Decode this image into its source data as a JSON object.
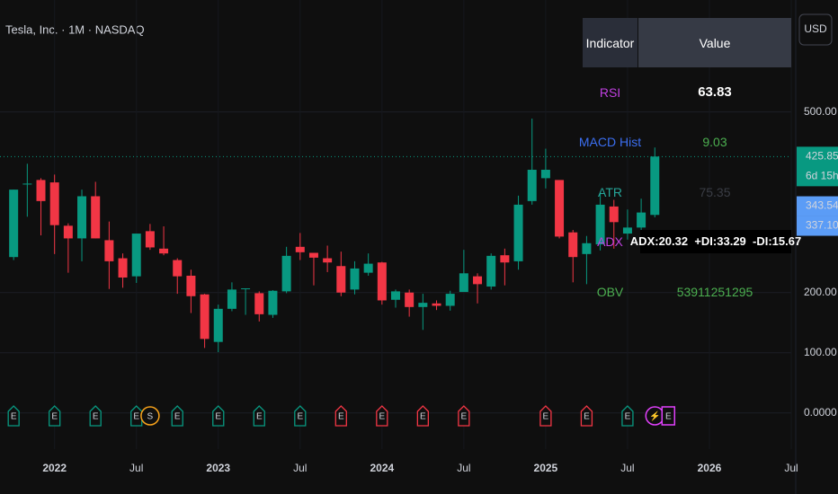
{
  "chart_data": {
    "type": "candlestick",
    "title": "Tesla, Inc. · 1M · NASDAQ",
    "currency": "USD",
    "up_color": "#089981",
    "down_color": "#f23645",
    "x": [
      "2021-10",
      "2021-11",
      "2021-12",
      "2022-01",
      "2022-02",
      "2022-03",
      "2022-04",
      "2022-05",
      "2022-06",
      "2022-07",
      "2022-08",
      "2022-09",
      "2022-10",
      "2022-11",
      "2022-12",
      "2023-01",
      "2023-02",
      "2023-03",
      "2023-04",
      "2023-05",
      "2023-06",
      "2023-07",
      "2023-08",
      "2023-09",
      "2023-10",
      "2023-11",
      "2023-12",
      "2024-01",
      "2024-02",
      "2024-03",
      "2024-04",
      "2024-05",
      "2024-06",
      "2024-07",
      "2024-08",
      "2024-09",
      "2024-10",
      "2024-11",
      "2024-12",
      "2025-01",
      "2025-02",
      "2025-03",
      "2025-04",
      "2025-05",
      "2025-06",
      "2025-07",
      "2025-08",
      "2025-09"
    ],
    "open": [
      259,
      381,
      387,
      383,
      311,
      290,
      360,
      287,
      257,
      227,
      302,
      273,
      254,
      228,
      197,
      118,
      173,
      206,
      199,
      163,
      202,
      276,
      266,
      257,
      244,
      205,
      233,
      250,
      188,
      200,
      176,
      182,
      178,
      201,
      227,
      210,
      262,
      252,
      352,
      390,
      387,
      300,
      264,
      280,
      343,
      298,
      308,
      329
    ],
    "high": [
      371,
      414,
      390,
      396,
      315,
      371,
      384,
      318,
      265,
      298,
      314,
      310,
      257,
      238,
      198,
      180,
      217,
      207,
      202,
      204,
      276,
      299,
      266,
      278,
      268,
      252,
      265,
      251,
      205,
      205,
      198,
      187,
      203,
      271,
      232,
      265,
      273,
      361,
      489,
      439,
      384,
      304,
      294,
      367,
      354,
      338,
      356,
      441
    ],
    "low": [
      254,
      326,
      295,
      264,
      233,
      252,
      290,
      206,
      208,
      216,
      271,
      262,
      198,
      166,
      108,
      101,
      169,
      163,
      152,
      158,
      199,
      254,
      212,
      234,
      194,
      197,
      228,
      180,
      175,
      160,
      138,
      171,
      170,
      201,
      182,
      205,
      212,
      238,
      346,
      373,
      290,
      217,
      214,
      270,
      273,
      288,
      297,
      325
    ],
    "close": [
      371,
      381,
      352,
      312,
      290,
      360,
      290,
      252,
      225,
      298,
      275,
      265,
      227,
      194,
      123,
      173,
      205,
      207,
      164,
      203,
      261,
      267,
      258,
      250,
      200,
      240,
      248,
      187,
      202,
      176,
      183,
      178,
      198,
      232,
      214,
      261,
      250,
      346,
      404,
      404,
      293,
      259,
      282,
      346,
      317,
      308,
      333,
      426
    ],
    "events": [
      [
        {
          "label": "E",
          "color": "#089981",
          "shape": "flag"
        }
      ],
      null,
      null,
      [
        {
          "label": "E",
          "color": "#089981",
          "shape": "flag"
        }
      ],
      null,
      null,
      [
        {
          "label": "E",
          "color": "#089981",
          "shape": "flag"
        }
      ],
      null,
      null,
      [
        {
          "label": "E",
          "color": "#089981",
          "shape": "flag"
        }
      ],
      [
        {
          "label": "S",
          "color": "#f7a21b",
          "shape": "circle"
        }
      ],
      null,
      [
        {
          "label": "E",
          "color": "#089981",
          "shape": "flag"
        }
      ],
      null,
      null,
      [
        {
          "label": "E",
          "color": "#089981",
          "shape": "flag"
        }
      ],
      null,
      null,
      [
        {
          "label": "E",
          "color": "#089981",
          "shape": "flag"
        }
      ],
      null,
      null,
      [
        {
          "label": "E",
          "color": "#089981",
          "shape": "flag"
        }
      ],
      null,
      null,
      [
        {
          "label": "E",
          "color": "#f23645",
          "shape": "flag"
        }
      ],
      null,
      null,
      [
        {
          "label": "E",
          "color": "#f23645",
          "shape": "flag"
        }
      ],
      null,
      null,
      [
        {
          "label": "E",
          "color": "#f23645",
          "shape": "flag"
        }
      ],
      null,
      null,
      [
        {
          "label": "E",
          "color": "#f23645",
          "shape": "flag"
        }
      ],
      null,
      null,
      null,
      null,
      null,
      [
        {
          "label": "E",
          "color": "#f23645",
          "shape": "flag"
        }
      ],
      null,
      null,
      [
        {
          "label": "E",
          "color": "#f23645",
          "shape": "flag"
        }
      ],
      null,
      null,
      [
        {
          "label": "E",
          "color": "#089981",
          "shape": "flag"
        }
      ],
      null,
      [
        {
          "label": "⚡",
          "color": "#e040fb",
          "shape": "circle"
        },
        {
          "label": "E",
          "color": "#e040fb",
          "shape": "square"
        }
      ]
    ],
    "xlim": [
      "2021-09",
      "2026-07"
    ],
    "xticks": [
      {
        "value": "2022-01",
        "label": "2022"
      },
      {
        "value": "2022-07",
        "label": "Jul"
      },
      {
        "value": "2023-01",
        "label": "2023"
      },
      {
        "value": "2023-07",
        "label": "Jul"
      },
      {
        "value": "2024-01",
        "label": "2024"
      },
      {
        "value": "2024-07",
        "label": "Jul"
      },
      {
        "value": "2025-01",
        "label": "2025"
      },
      {
        "value": "2025-07",
        "label": "Jul"
      },
      {
        "value": "2026-01",
        "label": "2026"
      },
      {
        "value": "2026-07",
        "label": "Jul"
      }
    ],
    "ylim": [
      -60,
      686
    ],
    "yticks": [
      {
        "value": 0,
        "label": "0.0000"
      },
      {
        "value": 100,
        "label": "100.00"
      },
      {
        "value": 200,
        "label": "200.00"
      },
      {
        "value": 500,
        "label": "500.00"
      }
    ],
    "grid": true,
    "price_labels": [
      {
        "value": 425.85,
        "label": "425.85",
        "sub": "6d 15h",
        "color": "#089981"
      },
      {
        "value": 343.54,
        "label": "343.54",
        "color": "#5b9cf6"
      },
      {
        "value": 337.1,
        "label": "337.10",
        "color": "#5b9cf6"
      }
    ]
  },
  "table": {
    "header": [
      "Indicator",
      "Value"
    ],
    "rows": [
      {
        "label": "RSI",
        "value": "63.83",
        "label_color": "#c040e0",
        "value_color": "#ffffff"
      },
      {
        "label": "MACD Hist",
        "value": "9.03",
        "label_color": "#3b6ef0",
        "value_color": "#4caf50"
      },
      {
        "label": "ATR",
        "value": "75.35",
        "label_color": "#26a69a",
        "value_color": "#3a3d45"
      },
      {
        "label": "ADX",
        "value": "ADX:20.32  +DI:33.29  -DI:15.67",
        "label_color": "#c040e0",
        "value_color": "#ffffff"
      },
      {
        "label": "OBV",
        "value": "53911251295",
        "label_color": "#4caf50",
        "value_color": "#4caf50"
      }
    ]
  }
}
